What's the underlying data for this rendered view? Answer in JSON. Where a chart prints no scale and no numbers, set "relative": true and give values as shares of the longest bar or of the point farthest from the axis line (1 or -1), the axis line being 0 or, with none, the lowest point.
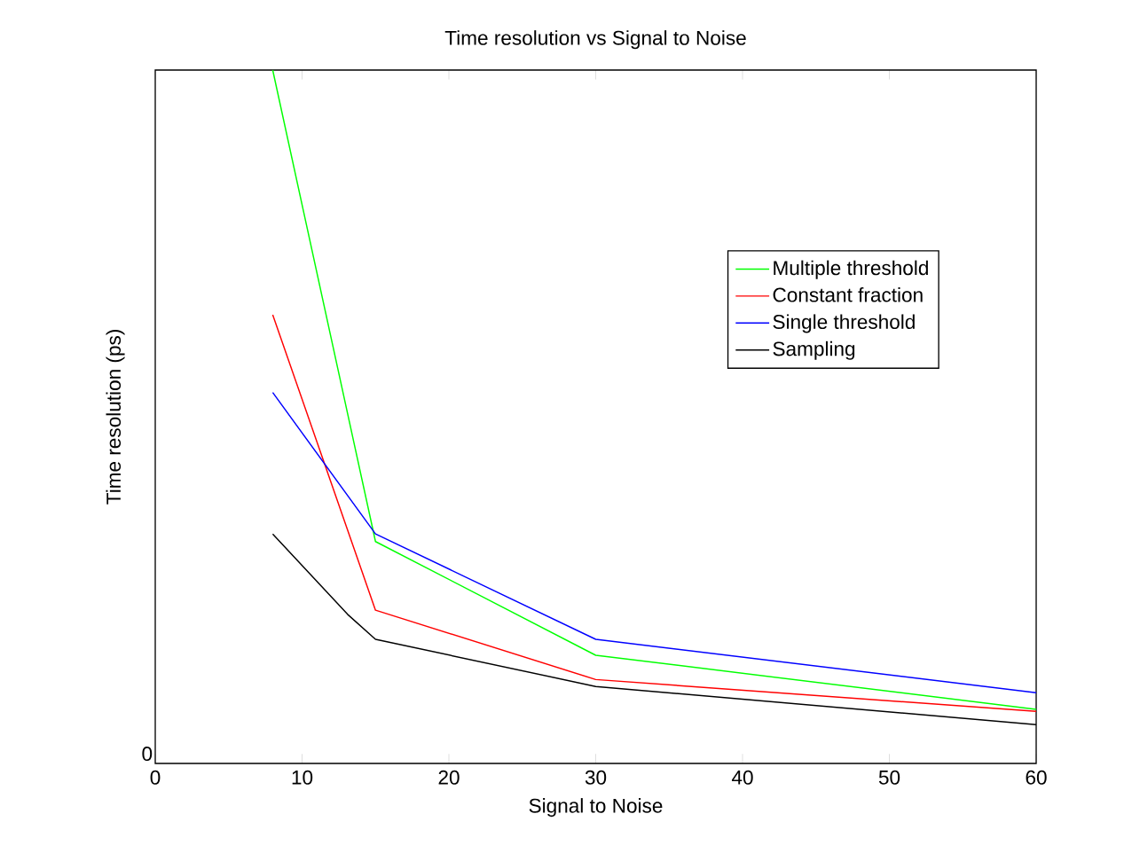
{
  "chart_data": {
    "type": "line",
    "title": "Time resolution vs Signal to Noise",
    "xlabel": "Signal to Noise",
    "ylabel": "Time resolution (ps)",
    "relative": true,
    "xlim": [
      0,
      60
    ],
    "xticks": [
      0,
      10,
      20,
      30,
      40,
      50,
      60
    ],
    "annotations": [
      "0"
    ],
    "legend": "top right",
    "marker": "none",
    "line_style": "solid",
    "grid": false,
    "series": [
      {
        "name": "Multiple threshold",
        "color": "#00ff00",
        "x": [
          8,
          15,
          30,
          60
        ],
        "values": [
          1,
          0.32,
          0.156,
          0.078
        ]
      },
      {
        "name": "Constant fraction",
        "color": "#ff0000",
        "x": [
          8,
          15,
          30,
          60
        ],
        "values": [
          0.647,
          0.221,
          0.121,
          0.075
        ]
      },
      {
        "name": "Single threshold",
        "color": "#0000ff",
        "x": [
          8,
          15,
          30,
          60
        ],
        "values": [
          0.535,
          0.331,
          0.179,
          0.102
        ]
      },
      {
        "name": "Sampling",
        "color": "#000000",
        "x": [
          8,
          13.1,
          15,
          30,
          60
        ],
        "values": [
          0.331,
          0.215,
          0.179,
          0.111,
          0.056
        ]
      }
    ]
  }
}
